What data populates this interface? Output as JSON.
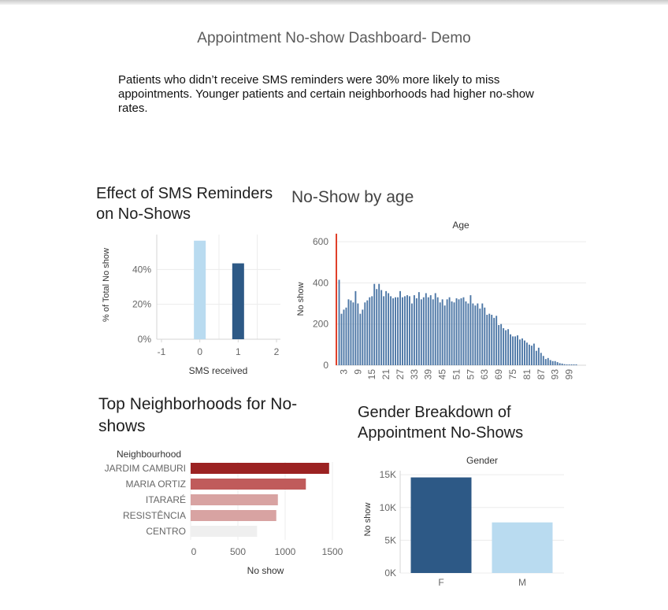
{
  "dashboard": {
    "title": "Appointment No-show Dashboard- Demo",
    "summary": "Patients who didn’t receive SMS reminders were 30% more likely to miss appointments. Younger patients and certain neighborhoods had higher no-show rates."
  },
  "colors": {
    "light_blue": "#b9dbf0",
    "dark_blue": "#2d5986",
    "mid_blue": "#4d77a6",
    "red_line": "#e0402a",
    "nb_dark_red": "#9b2222",
    "nb_mid_red": "#c05b5b",
    "nb_light_red": "#d8a3a2",
    "nb_gray": "#efefef"
  },
  "chart_data": [
    {
      "id": "sms",
      "type": "bar",
      "title": "Effect of SMS Reminders on No-Shows",
      "xlabel": "SMS received",
      "ylabel": "% of Total No show",
      "x_ticks": [
        "-1",
        "0",
        "1",
        "2"
      ],
      "y_ticks": [
        "0%",
        "20%",
        "40%"
      ],
      "xlim": [
        -1,
        2
      ],
      "ylim": [
        0,
        0.6
      ],
      "bars": [
        {
          "x": 0,
          "value": 0.565,
          "color": "#b9dbf0"
        },
        {
          "x": 1,
          "value": 0.435,
          "color": "#2d5986"
        }
      ]
    },
    {
      "id": "age",
      "type": "bar",
      "title": "No-Show by age",
      "header": "Age",
      "ylabel": "No show",
      "ylim": [
        0,
        650
      ],
      "y_ticks": [
        0,
        200,
        400,
        600
      ],
      "x_ticks": [
        "3",
        "9",
        "15",
        "21",
        "27",
        "33",
        "39",
        "45",
        "51",
        "57",
        "63",
        "69",
        "75",
        "81",
        "87",
        "93",
        "99"
      ],
      "highlight": {
        "age": 0,
        "value": 639
      },
      "ages": [
        1,
        2,
        3,
        4,
        5,
        6,
        7,
        8,
        9,
        10,
        11,
        12,
        13,
        14,
        15,
        16,
        17,
        18,
        19,
        20,
        21,
        22,
        23,
        24,
        25,
        26,
        27,
        28,
        29,
        30,
        31,
        32,
        33,
        34,
        35,
        36,
        37,
        38,
        39,
        40,
        41,
        42,
        43,
        44,
        45,
        46,
        47,
        48,
        49,
        50,
        51,
        52,
        53,
        54,
        55,
        56,
        57,
        58,
        59,
        60,
        61,
        62,
        63,
        64,
        65,
        66,
        67,
        68,
        69,
        70,
        71,
        72,
        73,
        74,
        75,
        76,
        77,
        78,
        79,
        80,
        81,
        82,
        83,
        84,
        85,
        86,
        87,
        88,
        89,
        90,
        91,
        92,
        93,
        94,
        95,
        96,
        97,
        98,
        99,
        100,
        101,
        102
      ],
      "values": [
        415,
        250,
        270,
        280,
        320,
        315,
        305,
        360,
        300,
        250,
        270,
        305,
        315,
        330,
        335,
        395,
        370,
        395,
        365,
        335,
        360,
        350,
        335,
        325,
        330,
        330,
        360,
        330,
        335,
        340,
        335,
        300,
        340,
        325,
        355,
        320,
        330,
        350,
        330,
        340,
        320,
        350,
        330,
        305,
        320,
        290,
        320,
        330,
        310,
        305,
        325,
        320,
        325,
        330,
        310,
        300,
        340,
        300,
        290,
        300,
        275,
        300,
        280,
        245,
        250,
        245,
        230,
        240,
        195,
        200,
        180,
        170,
        175,
        150,
        140,
        140,
        145,
        125,
        130,
        120,
        110,
        100,
        95,
        105,
        70,
        85,
        60,
        45,
        30,
        35,
        25,
        20,
        20,
        15,
        10,
        8,
        5,
        3,
        2,
        2,
        1,
        1
      ]
    },
    {
      "id": "neighborhoods",
      "type": "bar",
      "orientation": "horizontal",
      "title": "Top Neighborhoods for No-shows",
      "header": "Neighbourhood",
      "xlabel": "No show",
      "xlim": [
        0,
        1600
      ],
      "x_ticks": [
        0,
        500,
        1000,
        1500
      ],
      "categories": [
        "JARDIM CAMBURI",
        "MARIA ORTIZ",
        "ITARARÉ",
        "RESISTÊNCIA",
        "CENTRO"
      ],
      "values": [
        1465,
        1219,
        923,
        906,
        703
      ],
      "bar_colors": [
        "#9b2222",
        "#c05b5b",
        "#d8a3a2",
        "#d8a3a2",
        "#efefef"
      ]
    },
    {
      "id": "gender",
      "type": "bar",
      "title": "Gender Breakdown of Appointment No-Shows",
      "header": "Gender",
      "ylabel": "No show",
      "ylim": [
        0,
        15500
      ],
      "y_ticks": [
        "0K",
        "5K",
        "10K",
        "15K"
      ],
      "categories": [
        "F",
        "M"
      ],
      "values": [
        14594,
        7725
      ],
      "bar_colors": [
        "#2d5986",
        "#b9dbf0"
      ]
    }
  ]
}
